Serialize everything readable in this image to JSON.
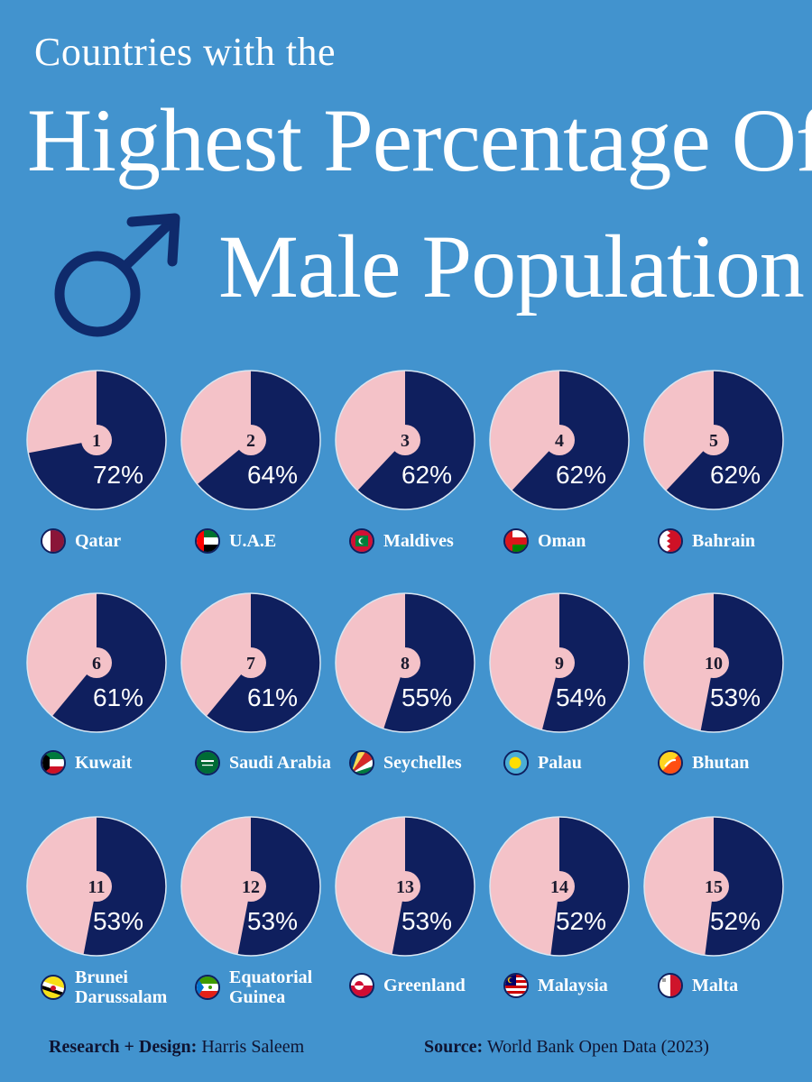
{
  "header": {
    "subtitle": "Countries with the",
    "title_line1": "Highest Percentage Of",
    "title_line2": "Male Population"
  },
  "colors": {
    "background": "#4293ce",
    "male": "#0f1f5e",
    "female": "#f4c2c8",
    "text": "#ffffff",
    "footer_text": "#0f1432"
  },
  "chart_data": {
    "type": "pie",
    "title": "Countries with the Highest Percentage Of Male Population",
    "series_colors": {
      "male": "#0f1f5e",
      "female": "#f4c2c8"
    },
    "items": [
      {
        "rank": "1",
        "country": "Qatar",
        "value": 72,
        "label": "72%",
        "flag": "qatar-flag"
      },
      {
        "rank": "2",
        "country": "U.A.E",
        "value": 64,
        "label": "64%",
        "flag": "uae-flag"
      },
      {
        "rank": "3",
        "country": "Maldives",
        "value": 62,
        "label": "62%",
        "flag": "maldives-flag"
      },
      {
        "rank": "4",
        "country": "Oman",
        "value": 62,
        "label": "62%",
        "flag": "oman-flag"
      },
      {
        "rank": "5",
        "country": "Bahrain",
        "value": 62,
        "label": "62%",
        "flag": "bahrain-flag"
      },
      {
        "rank": "6",
        "country": "Kuwait",
        "value": 61,
        "label": "61%",
        "flag": "kuwait-flag"
      },
      {
        "rank": "7",
        "country": "Saudi Arabia",
        "value": 61,
        "label": "61%",
        "flag": "saudi-arabia-flag"
      },
      {
        "rank": "8",
        "country": "Seychelles",
        "value": 55,
        "label": "55%",
        "flag": "seychelles-flag"
      },
      {
        "rank": "9",
        "country": "Palau",
        "value": 54,
        "label": "54%",
        "flag": "palau-flag"
      },
      {
        "rank": "10",
        "country": "Bhutan",
        "value": 53,
        "label": "53%",
        "flag": "bhutan-flag"
      },
      {
        "rank": "11",
        "country": "Brunei\nDarussalam",
        "value": 53,
        "label": "53%",
        "flag": "brunei-flag"
      },
      {
        "rank": "12",
        "country": "Equatorial\nGuinea",
        "value": 53,
        "label": "53%",
        "flag": "equatorial-guinea-flag"
      },
      {
        "rank": "13",
        "country": "Greenland",
        "value": 53,
        "label": "53%",
        "flag": "greenland-flag"
      },
      {
        "rank": "14",
        "country": "Malaysia",
        "value": 52,
        "label": "52%",
        "flag": "malaysia-flag"
      },
      {
        "rank": "15",
        "country": "Malta",
        "value": 52,
        "label": "52%",
        "flag": "malta-flag"
      }
    ]
  },
  "footer": {
    "credit_label": "Research + Design:",
    "credit_value": "Harris Saleem",
    "source_label": "Source:",
    "source_value": "World Bank Open Data (2023)"
  }
}
